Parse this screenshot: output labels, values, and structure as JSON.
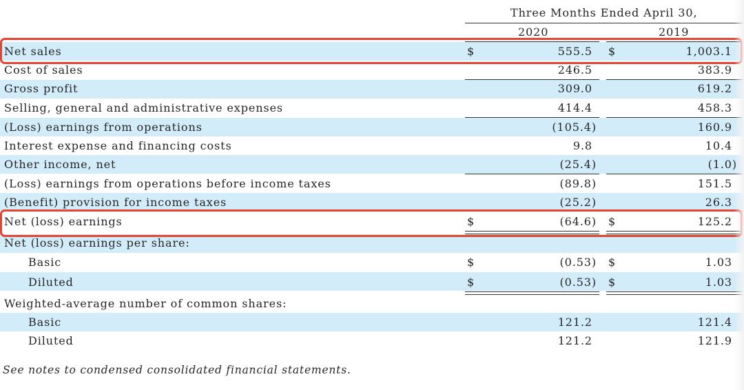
{
  "header": {
    "period": "Three Months Ended April 30,",
    "col1": "2020",
    "col2": "2019"
  },
  "rows": [
    {
      "label": "Net sales",
      "d1": "$",
      "v1": "555.5",
      "d2": "$",
      "v2": "1,003.1"
    },
    {
      "label": "Cost of sales",
      "v1": "246.5",
      "v2": "383.9"
    },
    {
      "label": "Gross profit",
      "v1": "309.0",
      "v2": "619.2"
    },
    {
      "label": "Selling, general and administrative expenses",
      "v1": "414.4",
      "v2": "458.3"
    },
    {
      "label": "(Loss) earnings from operations",
      "v1": "(105.4)",
      "v2": "160.9"
    },
    {
      "label": "Interest expense and financing costs",
      "v1": "9.8",
      "v2": "10.4"
    },
    {
      "label": "Other income, net",
      "v1": "(25.4)",
      "v2": "(1.0)"
    },
    {
      "label": "(Loss) earnings from operations before income taxes",
      "v1": "(89.8)",
      "v2": "151.5"
    },
    {
      "label": "(Benefit) provision for income taxes",
      "v1": "(25.2)",
      "v2": "26.3"
    },
    {
      "label": "Net (loss) earnings",
      "d1": "$",
      "v1": "(64.6)",
      "d2": "$",
      "v2": "125.2"
    },
    {
      "label": "Net (loss) earnings per share:"
    },
    {
      "label": "Basic",
      "d1": "$",
      "v1": "(0.53)",
      "d2": "$",
      "v2": "1.03"
    },
    {
      "label": "Diluted",
      "d1": "$",
      "v1": "(0.53)",
      "d2": "$",
      "v2": "1.03"
    },
    {
      "label": "Weighted-average number of common shares:"
    },
    {
      "label": "Basic",
      "v1": "121.2",
      "v2": "121.4"
    },
    {
      "label": "Diluted",
      "v1": "121.2",
      "v2": "121.9"
    }
  ],
  "footer": "See notes to condensed consolidated financial statements.",
  "colors": {
    "shade": "#d3ecfa",
    "highlight": "#e4432f"
  }
}
